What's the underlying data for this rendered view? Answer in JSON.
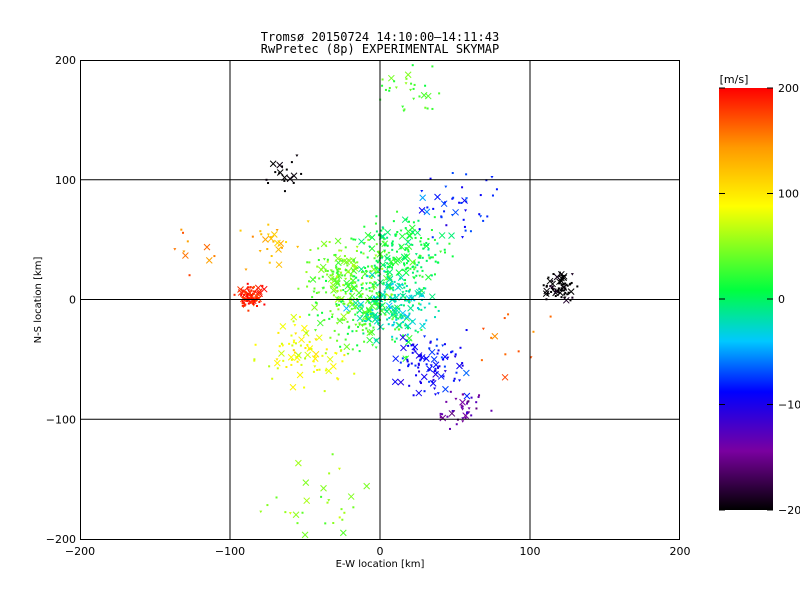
{
  "chart_data": {
    "type": "scatter",
    "title": "Tromsø 20150724 14:10:00–14:11:43",
    "subtitle": "RwPretec (8p) EXPERIMENTAL SKYMAP",
    "xlabel": "E-W location [km]",
    "ylabel": "N-S location [km]",
    "xlim": [
      -200,
      200
    ],
    "ylim": [
      -200,
      200
    ],
    "x_ticks": [
      "−200",
      "−100",
      "0",
      "100",
      "200"
    ],
    "y_ticks": [
      "−200",
      "−100",
      "0",
      "100",
      "200"
    ],
    "grid": "lines at −100, 0, 100 km",
    "colorbar": {
      "label": "[m/s]",
      "range": [
        -200,
        200
      ],
      "ticks": [
        "200",
        "100",
        "0",
        "−100",
        "−200"
      ],
      "colormap": [
        "#000000",
        "#7a00a0",
        "#0000ff",
        "#00c8ff",
        "#00ff40",
        "#ffff00",
        "#ff9900",
        "#ff0000"
      ]
    },
    "markers": {
      "small": "dot/triangle",
      "large": "x"
    },
    "clusters": [
      {
        "x": -87,
        "y": 3,
        "v": 190,
        "n": 90,
        "spread": 10
      },
      {
        "x": -70,
        "y": 45,
        "v": 120,
        "n": 25,
        "spread": 25
      },
      {
        "x": -50,
        "y": -45,
        "v": 85,
        "n": 80,
        "spread": 30
      },
      {
        "x": -25,
        "y": 20,
        "v": 45,
        "n": 160,
        "spread": 30
      },
      {
        "x": -10,
        "y": -10,
        "v": 30,
        "n": 180,
        "spread": 35
      },
      {
        "x": 15,
        "y": 40,
        "v": 10,
        "n": 200,
        "spread": 32
      },
      {
        "x": 10,
        "y": -5,
        "v": -20,
        "n": 170,
        "spread": 30
      },
      {
        "x": 35,
        "y": -55,
        "v": -90,
        "n": 100,
        "spread": 28
      },
      {
        "x": 55,
        "y": -90,
        "v": -140,
        "n": 40,
        "spread": 18
      },
      {
        "x": 50,
        "y": 80,
        "v": -80,
        "n": 45,
        "spread": 30
      },
      {
        "x": 120,
        "y": 10,
        "v": -205,
        "n": 70,
        "spread": 14
      },
      {
        "x": -65,
        "y": 105,
        "v": -205,
        "n": 18,
        "spread": 15
      },
      {
        "x": 20,
        "y": 175,
        "v": 30,
        "n": 30,
        "spread": 25
      },
      {
        "x": -40,
        "y": -170,
        "v": 50,
        "n": 30,
        "spread": 35
      },
      {
        "x": 90,
        "y": -40,
        "v": 170,
        "n": 12,
        "spread": 35
      },
      {
        "x": -130,
        "y": 40,
        "v": 150,
        "n": 10,
        "spread": 25
      }
    ]
  }
}
